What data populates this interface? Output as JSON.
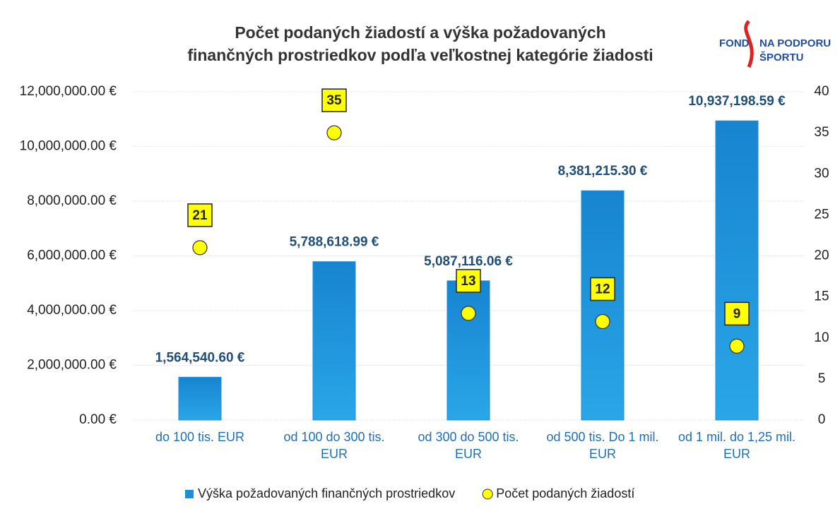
{
  "logo": [
    "FOND",
    "NA PODPORU",
    "ŠPORTU"
  ],
  "chart_data": {
    "type": "bar",
    "title": [
      "Počet podaných žiadostí a výška požadovaných",
      "finančných prostriedkov podľa veľkostnej kategórie žiadosti"
    ],
    "categories": [
      "do 100 tis. EUR",
      "od 100 do 300 tis. EUR",
      "od 300 do 500 tis. EUR",
      "od 500 tis. Do 1 mil. EUR",
      "od 1 mil. do 1,25 mil. EUR"
    ],
    "series": [
      {
        "name": "Výška požadovaných finančných prostriedkov",
        "type": "bar",
        "color": "#1b8fd8",
        "values": [
          1564540.6,
          5788618.99,
          5087116.06,
          8381215.3,
          10937198.59
        ],
        "value_labels": [
          "1,564,540.60 €",
          "5,788,618.99 €",
          "5,087,116.06 €",
          "8,381,215.30 €",
          "10,937,198.59 €"
        ]
      },
      {
        "name": "Počet podaných žiadostí",
        "type": "scatter",
        "axis": "y2",
        "color": "#ffff00",
        "values": [
          21,
          35,
          13,
          12,
          9
        ]
      }
    ],
    "ylim": [
      0,
      12000000
    ],
    "yticks": [
      {
        "value": 0,
        "label": "0.00 €"
      },
      {
        "value": 2000000,
        "label": "2,000,000.00 €"
      },
      {
        "value": 4000000,
        "label": "4,000,000.00 €"
      },
      {
        "value": 6000000,
        "label": "6,000,000.00 €"
      },
      {
        "value": 8000000,
        "label": "8,000,000.00 €"
      },
      {
        "value": 10000000,
        "label": "10,000,000.00 €"
      },
      {
        "value": 12000000,
        "label": "12,000,000.00 €"
      }
    ],
    "y2lim": [
      0,
      40
    ],
    "y2ticks": [
      0,
      5,
      10,
      15,
      20,
      25,
      30,
      35,
      40
    ],
    "grid": true,
    "legend": "bottom"
  }
}
